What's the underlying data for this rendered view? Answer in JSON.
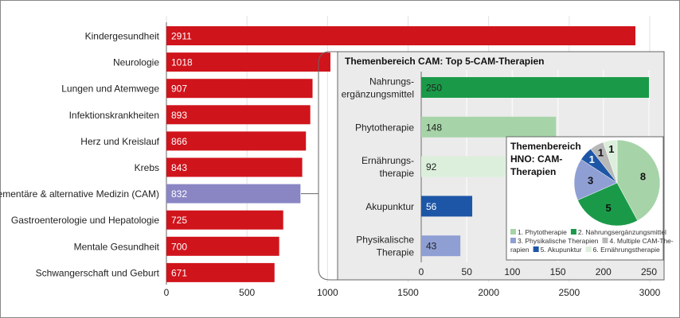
{
  "chart_data": [
    {
      "type": "bar",
      "orientation": "horizontal",
      "categories": [
        "Kindergesundheit",
        "Neurologie",
        "Lungen und Atemwege",
        "Infektionskrankheiten",
        "Herz und Kreislauf",
        "Krebs",
        "Komplementäre & alternative Medizin (CAM)",
        "Gastroenterologie und Hepatologie",
        "Mentale Gesundheit",
        "Schwangerschaft und Geburt"
      ],
      "values": [
        2911,
        1018,
        907,
        893,
        866,
        843,
        832,
        725,
        700,
        671
      ],
      "colors": [
        "#d0141c",
        "#d0141c",
        "#d0141c",
        "#d0141c",
        "#d0141c",
        "#d0141c",
        "#8a86c4",
        "#d0141c",
        "#d0141c",
        "#d0141c"
      ],
      "xlim": [
        0,
        3000
      ],
      "xticks": [
        0,
        500,
        1000,
        1500,
        2000,
        2500,
        3000
      ],
      "grid": true
    },
    {
      "type": "bar",
      "orientation": "horizontal",
      "title": "Themenbereich CAM: Top 5-CAM-Therapien",
      "categories": [
        [
          "Nahrungs-",
          "ergänzungsmittel"
        ],
        [
          "Phytotherapie"
        ],
        [
          "Ernährungs-",
          "therapie"
        ],
        [
          "Akupunktur"
        ],
        [
          "Physikalische",
          "Therapie"
        ]
      ],
      "values": [
        250,
        148,
        92,
        56,
        43
      ],
      "colors": [
        "#1a9a48",
        "#a6d4a8",
        "#dcefdc",
        "#1d56a6",
        "#8f9fd4"
      ],
      "xlim": [
        0,
        250
      ],
      "xticks": [
        0,
        50,
        100,
        150,
        200,
        250
      ],
      "grid": true
    },
    {
      "type": "pie",
      "title": [
        "Themenbereich",
        "HNO: CAM-",
        "Therapien"
      ],
      "labels": [
        "1. Phytotherapie",
        "2. Nahrungsergänzungsmittel",
        "3. Physikalische Therapien",
        "4. Multiple CAM-Therapien",
        "5. Akupunktur",
        "6. Ernährungstherapie"
      ],
      "legend_lines": [
        [
          "1. Phytotherapie",
          "2. Nahrungsergänzungsmittel"
        ],
        [
          "3. Physikalische Therapien",
          "4. Multiple CAM-The-"
        ],
        [
          "rapien",
          "5. Akupunktur",
          "6. Ernährungstherapie"
        ]
      ],
      "values": [
        8,
        5,
        3,
        1,
        1,
        1
      ],
      "slice_order": [
        0,
        1,
        2,
        4,
        3,
        5
      ],
      "colors": [
        "#a6d4a8",
        "#1a9a48",
        "#8f9fd4",
        "#b8b8b8",
        "#1d56a6",
        "#dcefdc"
      ],
      "legend": "bottom"
    }
  ]
}
